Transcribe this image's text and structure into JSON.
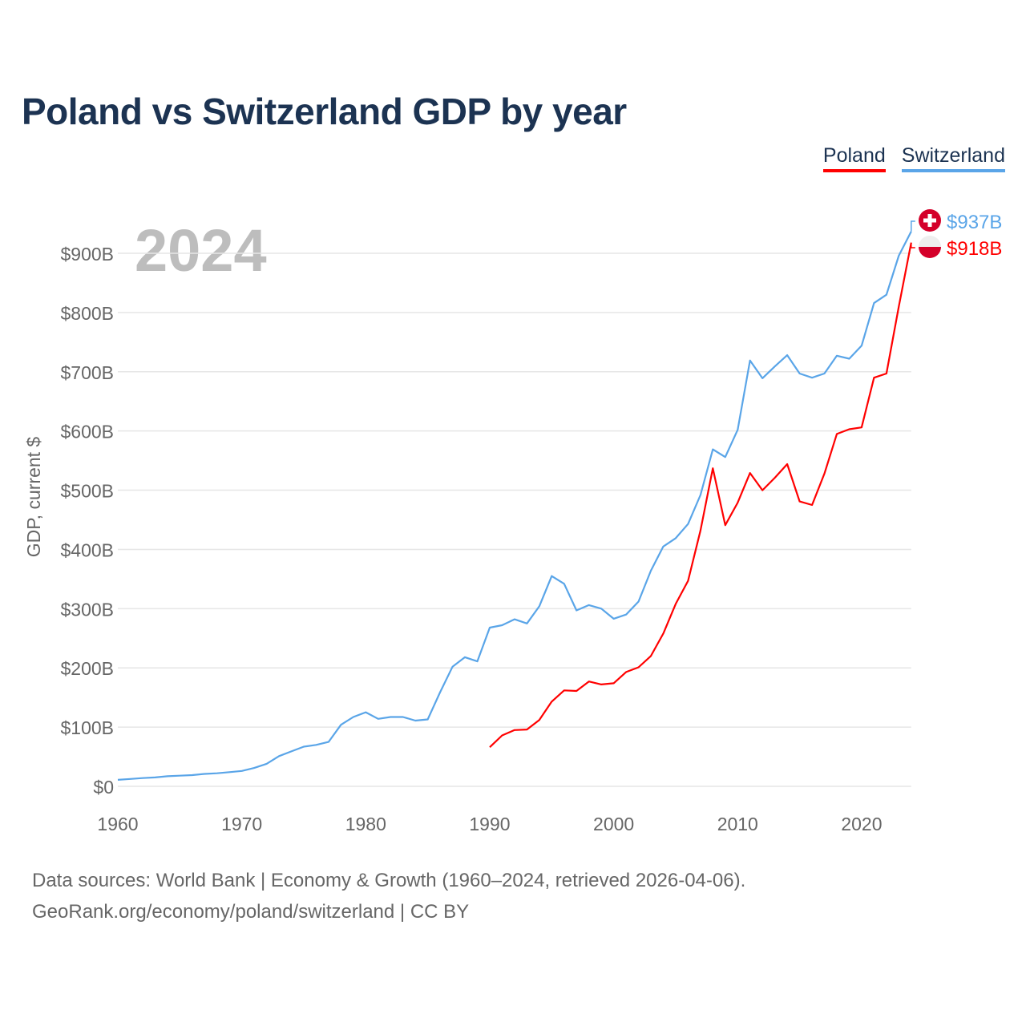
{
  "chart_data": {
    "type": "line",
    "title": "Poland vs Switzerland GDP by year",
    "ylabel": "GDP, current $",
    "xlabel": "",
    "year_watermark": "2024",
    "xlim": [
      1960,
      2024
    ],
    "ylim": [
      0,
      900
    ],
    "x_ticks": [
      1960,
      1970,
      1980,
      1990,
      2000,
      2010,
      2020
    ],
    "y_ticks": [
      0,
      100,
      200,
      300,
      400,
      500,
      600,
      700,
      800,
      900
    ],
    "y_tick_labels": [
      "$0",
      "$100B",
      "$200B",
      "$300B",
      "$400B",
      "$500B",
      "$600B",
      "$700B",
      "$800B",
      "$900B"
    ],
    "grid": true,
    "legend_position": "top-right",
    "series": [
      {
        "name": "Poland",
        "color": "#ff0000",
        "end_label": "$918B",
        "flag": "poland-flag",
        "start_year": 1990,
        "values": [
          66,
          86,
          95,
          96,
          112,
          143,
          162,
          161,
          177,
          172,
          174,
          193,
          201,
          220,
          258,
          308,
          347,
          432,
          537,
          441,
          479,
          529,
          500,
          521,
          544,
          481,
          475,
          528,
          595,
          603,
          606,
          690,
          697,
          810,
          918
        ]
      },
      {
        "name": "Switzerland",
        "color": "#5aa5e8",
        "end_label": "$937B",
        "flag": "switzerland-flag",
        "start_year": 1960,
        "values": [
          11,
          12.5,
          14,
          15,
          17,
          18,
          19,
          21,
          22,
          24,
          26,
          31,
          38,
          51,
          59,
          67,
          70,
          75,
          104,
          117,
          125,
          114,
          117,
          117,
          111,
          113,
          159,
          202,
          218,
          211,
          268,
          272,
          282,
          275,
          304,
          355,
          342,
          297,
          306,
          300,
          283,
          290,
          312,
          364,
          405,
          419,
          443,
          492,
          569,
          556,
          602,
          719,
          689,
          709,
          728,
          697,
          690,
          697,
          727,
          722,
          744,
          816,
          830,
          896,
          937
        ]
      }
    ]
  },
  "footer": {
    "line1": "Data sources: World Bank | Economy & Growth (1960–2024, retrieved 2026-04-06).",
    "line2": "GeoRank.org/economy/poland/switzerland | CC BY"
  }
}
